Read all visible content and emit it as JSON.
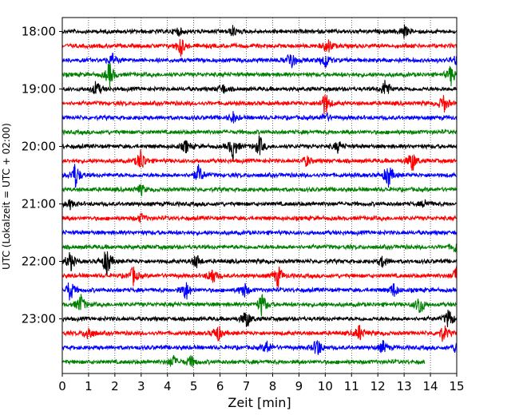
{
  "chart_data": {
    "type": "line",
    "chart_kind": "helicorder seismogram",
    "xlabel": "Zeit  [min]",
    "ylabel": "UTC (Lokalzeit = UTC + 02:00)",
    "xlim": [
      0,
      15
    ],
    "x_ticks": [
      "0",
      "1",
      "2",
      "3",
      "4",
      "5",
      "6",
      "7",
      "8",
      "9",
      "10",
      "11",
      "12",
      "13",
      "14",
      "15"
    ],
    "y_ticks": [
      "18:00",
      "19:00",
      "20:00",
      "21:00",
      "22:00",
      "23:00"
    ],
    "vertical_grid": "dotted",
    "trace_colors": [
      "#000000",
      "#ff0000",
      "#0000ff",
      "#008000"
    ],
    "traces": [
      {
        "start": "18:00",
        "color": "#000000",
        "end_min": 15
      },
      {
        "start": "18:15",
        "color": "#ff0000",
        "end_min": 15
      },
      {
        "start": "18:30",
        "color": "#0000ff",
        "end_min": 15
      },
      {
        "start": "18:45",
        "color": "#008000",
        "end_min": 15
      },
      {
        "start": "19:00",
        "color": "#000000",
        "end_min": 15
      },
      {
        "start": "19:15",
        "color": "#ff0000",
        "end_min": 15
      },
      {
        "start": "19:30",
        "color": "#0000ff",
        "end_min": 15
      },
      {
        "start": "19:45",
        "color": "#008000",
        "end_min": 15
      },
      {
        "start": "20:00",
        "color": "#000000",
        "end_min": 15
      },
      {
        "start": "20:15",
        "color": "#ff0000",
        "end_min": 15
      },
      {
        "start": "20:30",
        "color": "#0000ff",
        "end_min": 15
      },
      {
        "start": "20:45",
        "color": "#008000",
        "end_min": 15
      },
      {
        "start": "21:00",
        "color": "#000000",
        "end_min": 15
      },
      {
        "start": "21:15",
        "color": "#ff0000",
        "end_min": 15
      },
      {
        "start": "21:30",
        "color": "#0000ff",
        "end_min": 15
      },
      {
        "start": "21:45",
        "color": "#008000",
        "end_min": 15
      },
      {
        "start": "22:00",
        "color": "#000000",
        "end_min": 15
      },
      {
        "start": "22:15",
        "color": "#ff0000",
        "end_min": 15
      },
      {
        "start": "22:30",
        "color": "#0000ff",
        "end_min": 15
      },
      {
        "start": "22:45",
        "color": "#008000",
        "end_min": 15
      },
      {
        "start": "23:00",
        "color": "#000000",
        "end_min": 15
      },
      {
        "start": "23:15",
        "color": "#ff0000",
        "end_min": 15
      },
      {
        "start": "23:30",
        "color": "#0000ff",
        "end_min": 15
      },
      {
        "start": "23:45",
        "color": "#008000",
        "end_min": 13.8
      }
    ],
    "bursts": [
      {
        "trace": 0,
        "min": 4.4,
        "amp": 0.4
      },
      {
        "trace": 0,
        "min": 6.5,
        "amp": 0.5
      },
      {
        "trace": 0,
        "min": 13.0,
        "amp": 0.6
      },
      {
        "trace": 1,
        "min": 4.5,
        "amp": 1.0
      },
      {
        "trace": 1,
        "min": 10.1,
        "amp": 0.8
      },
      {
        "trace": 2,
        "min": 1.9,
        "amp": 0.6
      },
      {
        "trace": 2,
        "min": 8.7,
        "amp": 1.1
      },
      {
        "trace": 2,
        "min": 10.0,
        "amp": 0.8
      },
      {
        "trace": 2,
        "min": 15.0,
        "amp": 0.6
      },
      {
        "trace": 3,
        "min": 1.8,
        "amp": 1.2
      },
      {
        "trace": 3,
        "min": 14.8,
        "amp": 1.0
      },
      {
        "trace": 4,
        "min": 1.3,
        "amp": 0.8
      },
      {
        "trace": 4,
        "min": 6.1,
        "amp": 0.5
      },
      {
        "trace": 4,
        "min": 12.3,
        "amp": 1.0
      },
      {
        "trace": 5,
        "min": 10.0,
        "amp": 1.2
      },
      {
        "trace": 5,
        "min": 14.5,
        "amp": 0.9
      },
      {
        "trace": 6,
        "min": 6.5,
        "amp": 0.5
      },
      {
        "trace": 6,
        "min": 10.0,
        "amp": 0.5
      },
      {
        "trace": 8,
        "min": 4.7,
        "amp": 0.6
      },
      {
        "trace": 8,
        "min": 6.5,
        "amp": 1.3
      },
      {
        "trace": 8,
        "min": 7.5,
        "amp": 1.0
      },
      {
        "trace": 8,
        "min": 10.5,
        "amp": 0.6
      },
      {
        "trace": 9,
        "min": 3.0,
        "amp": 1.2
      },
      {
        "trace": 9,
        "min": 13.3,
        "amp": 1.1
      },
      {
        "trace": 9,
        "min": 9.3,
        "amp": 0.5
      },
      {
        "trace": 10,
        "min": 0.5,
        "amp": 1.3
      },
      {
        "trace": 10,
        "min": 5.2,
        "amp": 1.0
      },
      {
        "trace": 10,
        "min": 12.4,
        "amp": 1.2
      },
      {
        "trace": 11,
        "min": 3.0,
        "amp": 0.5
      },
      {
        "trace": 12,
        "min": 0.3,
        "amp": 0.4
      },
      {
        "trace": 12,
        "min": 13.8,
        "amp": 0.4
      },
      {
        "trace": 13,
        "min": 3.0,
        "amp": 0.4
      },
      {
        "trace": 15,
        "min": 15.0,
        "amp": 0.8
      },
      {
        "trace": 16,
        "min": 0.3,
        "amp": 1.0
      },
      {
        "trace": 16,
        "min": 1.7,
        "amp": 1.5
      },
      {
        "trace": 16,
        "min": 5.1,
        "amp": 0.7
      },
      {
        "trace": 16,
        "min": 12.2,
        "amp": 0.6
      },
      {
        "trace": 17,
        "min": 2.7,
        "amp": 0.9
      },
      {
        "trace": 17,
        "min": 5.7,
        "amp": 0.9
      },
      {
        "trace": 17,
        "min": 8.2,
        "amp": 1.1
      },
      {
        "trace": 17,
        "min": 15.0,
        "amp": 0.9
      },
      {
        "trace": 18,
        "min": 0.3,
        "amp": 1.1
      },
      {
        "trace": 18,
        "min": 4.7,
        "amp": 1.0
      },
      {
        "trace": 18,
        "min": 6.9,
        "amp": 0.8
      },
      {
        "trace": 18,
        "min": 12.6,
        "amp": 0.7
      },
      {
        "trace": 19,
        "min": 0.7,
        "amp": 1.0
      },
      {
        "trace": 19,
        "min": 7.6,
        "amp": 1.2
      },
      {
        "trace": 19,
        "min": 13.6,
        "amp": 1.1
      },
      {
        "trace": 20,
        "min": 7.0,
        "amp": 1.0
      },
      {
        "trace": 20,
        "min": 14.7,
        "amp": 1.0
      },
      {
        "trace": 21,
        "min": 1.0,
        "amp": 0.8
      },
      {
        "trace": 21,
        "min": 5.9,
        "amp": 0.9
      },
      {
        "trace": 21,
        "min": 11.3,
        "amp": 0.8
      },
      {
        "trace": 21,
        "min": 14.5,
        "amp": 0.9
      },
      {
        "trace": 22,
        "min": 7.8,
        "amp": 0.7
      },
      {
        "trace": 22,
        "min": 9.7,
        "amp": 1.0
      },
      {
        "trace": 22,
        "min": 12.2,
        "amp": 0.6
      },
      {
        "trace": 22,
        "min": 15.0,
        "amp": 0.6
      },
      {
        "trace": 23,
        "min": 4.2,
        "amp": 0.7
      },
      {
        "trace": 23,
        "min": 4.9,
        "amp": 0.6
      }
    ]
  }
}
